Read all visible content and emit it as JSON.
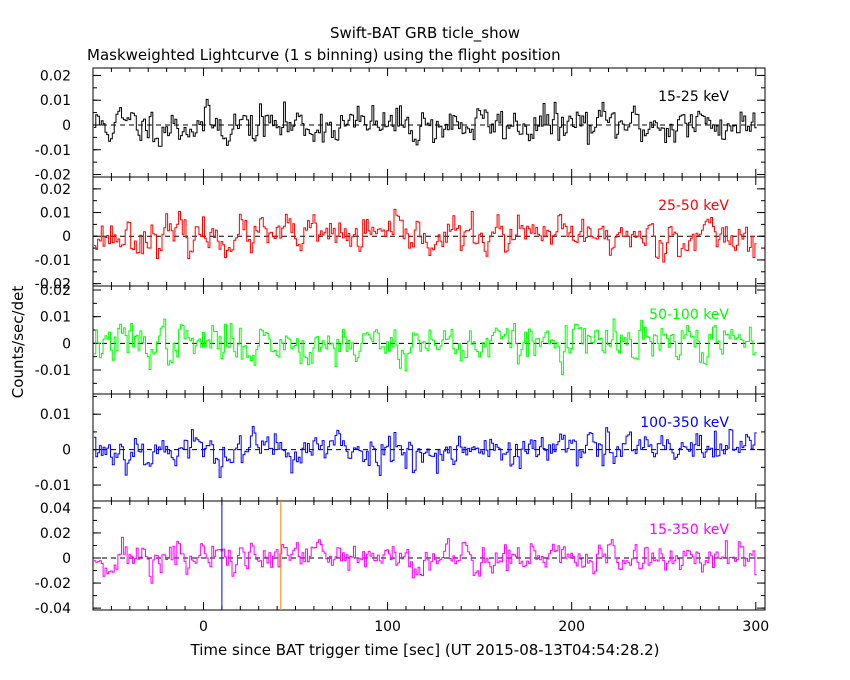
{
  "chart_data": {
    "type": "line",
    "title": "Swift-BAT GRB ticle_show",
    "subtitle": "Maskweighted Lightcurve (1 s binning) using the flight position",
    "xlabel": "Time since BAT trigger time [sec] (UT 2015-08-13T04:54:28.2)",
    "ylabel": "Counts/sec/det",
    "xlim": [
      -60,
      305
    ],
    "x_ticks": [
      0,
      100,
      200,
      300
    ],
    "x_tick_labels": [
      "0",
      "100",
      "200",
      "300"
    ],
    "bin_seconds": 1,
    "data_x_range": [
      -59,
      300
    ],
    "vertical_markers": [
      {
        "name": "blue-marker",
        "x": 10,
        "color": "#0000ff"
      },
      {
        "name": "orange-marker",
        "x": 42,
        "color": "#ff8800"
      }
    ],
    "series": [
      {
        "name": "15-25 keV",
        "label": "15-25 keV",
        "color": "#000000",
        "ylim": [
          -0.021,
          0.023
        ],
        "y_ticks": [
          0.02,
          0.01,
          0,
          -0.01,
          -0.02
        ],
        "y_tick_labels": [
          "0.02",
          "0.01",
          "0",
          "-0.01",
          "-0.02"
        ],
        "noise_sigma": 0.0065,
        "seed": 11
      },
      {
        "name": "25-50 keV",
        "label": "25-50 keV",
        "color": "#ff0000",
        "ylim": [
          -0.021,
          0.025
        ],
        "y_ticks": [
          0.02,
          0.01,
          0,
          -0.01,
          -0.02
        ],
        "y_tick_labels": [
          "0.02",
          "0.01",
          "0",
          "-0.01",
          "-0.02"
        ],
        "noise_sigma": 0.0065,
        "seed": 23
      },
      {
        "name": "50-100 keV",
        "label": "50-100 keV",
        "color": "#00ff00",
        "ylim": [
          -0.019,
          0.0215
        ],
        "y_ticks": [
          0.02,
          0.01,
          0,
          -0.01
        ],
        "y_tick_labels": [
          "0.02",
          "0.01",
          "0",
          "-0.01"
        ],
        "noise_sigma": 0.0065,
        "seed": 37
      },
      {
        "name": "100-350 keV",
        "label": "100-350 keV",
        "color": "#0000ff",
        "ylim": [
          -0.0145,
          0.0157
        ],
        "y_ticks": [
          0.01,
          0,
          -0.01
        ],
        "y_tick_labels": [
          "0.01",
          "0",
          "-0.01"
        ],
        "noise_sigma": 0.0045,
        "seed": 53
      },
      {
        "name": "15-350 keV",
        "label": "15-350 keV",
        "color": "#ff00ff",
        "ylim": [
          -0.0415,
          0.0455
        ],
        "y_ticks": [
          0.04,
          0.02,
          0,
          -0.02,
          -0.04
        ],
        "y_tick_labels": [
          "0.04",
          "0.02",
          "0",
          "-0.02",
          "-0.04"
        ],
        "noise_sigma": 0.012,
        "seed": 71
      }
    ]
  }
}
